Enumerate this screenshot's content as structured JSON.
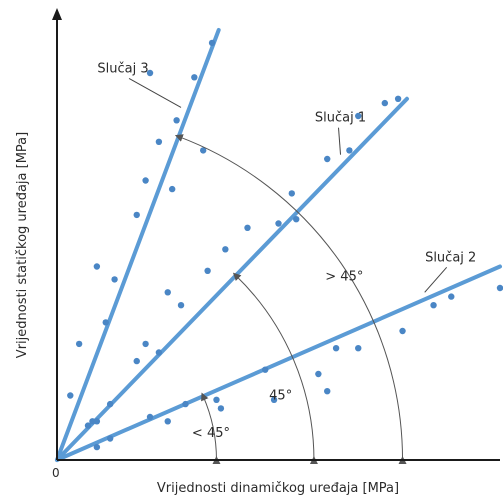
{
  "chart_data": {
    "type": "scatter",
    "title": "",
    "xlabel": "Vrijednosti dinamičkog uređaja [MPa]",
    "ylabel": "Vrijednosti statičkog uređaja [MPa]",
    "origin_label": "0",
    "grid": false,
    "colors": {
      "line": "#5b9bd5",
      "point": "#4a86c5",
      "axis": "#1a1a1a",
      "annotation": "#555555"
    },
    "xlim": [
      0,
      100
    ],
    "ylim": [
      0,
      100
    ],
    "series": [
      {
        "name": "Slučaj 3",
        "line": {
          "x": [
            0,
            36.5
          ],
          "y": [
            0,
            100
          ]
        },
        "label_point": {
          "x": 28,
          "y": 82
        },
        "points": [
          {
            "x": 3,
            "y": 15
          },
          {
            "x": 5,
            "y": 27
          },
          {
            "x": 8,
            "y": 9
          },
          {
            "x": 9,
            "y": 45
          },
          {
            "x": 11,
            "y": 32
          },
          {
            "x": 13,
            "y": 42
          },
          {
            "x": 18,
            "y": 57
          },
          {
            "x": 20,
            "y": 27
          },
          {
            "x": 20,
            "y": 65
          },
          {
            "x": 21,
            "y": 90
          },
          {
            "x": 23,
            "y": 74
          },
          {
            "x": 26,
            "y": 63
          },
          {
            "x": 27,
            "y": 79
          },
          {
            "x": 31,
            "y": 89
          },
          {
            "x": 33,
            "y": 72
          },
          {
            "x": 35,
            "y": 97
          }
        ]
      },
      {
        "name": "Slučaj 1",
        "line": {
          "x": [
            0,
            79
          ],
          "y": [
            0,
            84
          ]
        },
        "label_point": {
          "x": 64,
          "y": 71
        },
        "points": [
          {
            "x": 7,
            "y": 8
          },
          {
            "x": 9,
            "y": 9
          },
          {
            "x": 12,
            "y": 13
          },
          {
            "x": 18,
            "y": 23
          },
          {
            "x": 23,
            "y": 25
          },
          {
            "x": 25,
            "y": 39
          },
          {
            "x": 28,
            "y": 36
          },
          {
            "x": 34,
            "y": 44
          },
          {
            "x": 38,
            "y": 49
          },
          {
            "x": 43,
            "y": 54
          },
          {
            "x": 50,
            "y": 55
          },
          {
            "x": 53,
            "y": 62
          },
          {
            "x": 54,
            "y": 56
          },
          {
            "x": 61,
            "y": 70
          },
          {
            "x": 66,
            "y": 72
          },
          {
            "x": 68,
            "y": 80
          },
          {
            "x": 74,
            "y": 83
          },
          {
            "x": 77,
            "y": 84
          }
        ]
      },
      {
        "name": "Slučaj 2",
        "line": {
          "x": [
            0,
            100
          ],
          "y": [
            0,
            45
          ]
        },
        "label_point": {
          "x": 83,
          "y": 39
        },
        "points": [
          {
            "x": 9,
            "y": 3
          },
          {
            "x": 12,
            "y": 5
          },
          {
            "x": 21,
            "y": 10
          },
          {
            "x": 25,
            "y": 9
          },
          {
            "x": 29,
            "y": 13
          },
          {
            "x": 36,
            "y": 14
          },
          {
            "x": 37,
            "y": 12
          },
          {
            "x": 47,
            "y": 21
          },
          {
            "x": 49,
            "y": 14
          },
          {
            "x": 59,
            "y": 20
          },
          {
            "x": 61,
            "y": 16
          },
          {
            "x": 63,
            "y": 26
          },
          {
            "x": 68,
            "y": 26
          },
          {
            "x": 78,
            "y": 30
          },
          {
            "x": 85,
            "y": 36
          },
          {
            "x": 89,
            "y": 38
          },
          {
            "x": 100,
            "y": 40
          }
        ]
      }
    ],
    "annotations": [
      {
        "label": "> 45°",
        "target": "Slučaj 3",
        "radius_fraction": 0.78
      },
      {
        "label": "45°",
        "target": "Slučaj 1",
        "radius_fraction": 0.58
      },
      {
        "label": "< 45°",
        "target": "Slučaj 2",
        "radius_fraction": 0.36
      }
    ]
  }
}
